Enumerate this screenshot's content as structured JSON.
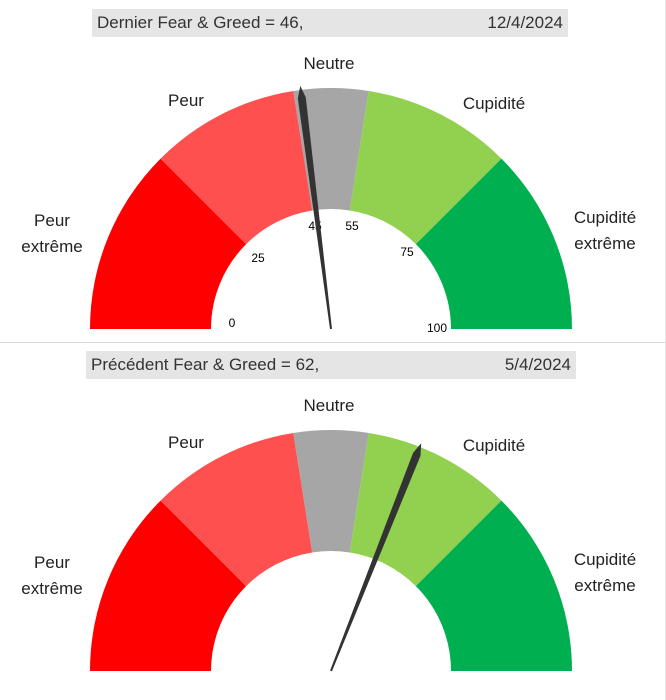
{
  "colors": {
    "extreme_fear": "#ff0000",
    "fear": "#ff5050",
    "neutral": "#a6a6a6",
    "greed": "#92d050",
    "extreme_greed": "#00b050",
    "needle": "#333333"
  },
  "chart_data": [
    {
      "type": "gauge",
      "title": "Dernier Fear & Greed = 46,",
      "date": "12/4/2024",
      "value": 46,
      "range": [
        0,
        100
      ],
      "segments": [
        {
          "label_lines": [
            "Peur",
            "extrême"
          ],
          "from": 0,
          "to": 25,
          "color": "#ff0000"
        },
        {
          "label_lines": [
            "Peur"
          ],
          "from": 25,
          "to": 45,
          "color": "#ff5050"
        },
        {
          "label_lines": [
            "Neutre"
          ],
          "from": 45,
          "to": 55,
          "color": "#a6a6a6"
        },
        {
          "label_lines": [
            "Cupidité"
          ],
          "from": 55,
          "to": 75,
          "color": "#92d050"
        },
        {
          "label_lines": [
            "Cupidité",
            "extrême"
          ],
          "from": 75,
          "to": 100,
          "color": "#00b050"
        }
      ],
      "tick_labels": [
        "0",
        "25",
        "45",
        "55",
        "75",
        "100"
      ]
    },
    {
      "type": "gauge",
      "title": "Précédent Fear & Greed = 62,",
      "date": "5/4/2024",
      "value": 62,
      "range": [
        0,
        100
      ],
      "segments": [
        {
          "label_lines": [
            "Peur",
            "extrême"
          ],
          "from": 0,
          "to": 25,
          "color": "#ff0000"
        },
        {
          "label_lines": [
            "Peur"
          ],
          "from": 25,
          "to": 45,
          "color": "#ff5050"
        },
        {
          "label_lines": [
            "Neutre"
          ],
          "from": 45,
          "to": 55,
          "color": "#a6a6a6"
        },
        {
          "label_lines": [
            "Cupidité"
          ],
          "from": 55,
          "to": 75,
          "color": "#92d050"
        },
        {
          "label_lines": [
            "Cupidité",
            "extrême"
          ],
          "from": 75,
          "to": 100,
          "color": "#00b050"
        }
      ],
      "tick_labels": []
    }
  ]
}
